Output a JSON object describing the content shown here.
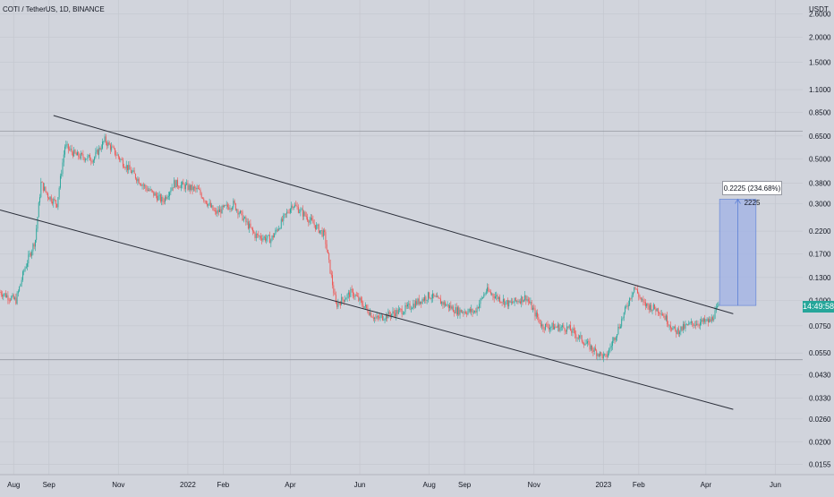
{
  "header": {
    "symbol_label": "COTI / TetherUS, 1D, BINANCE"
  },
  "price_badge": "14:49:58",
  "measure_label": "0.2225 (234.68%) 2225",
  "colors": {
    "up": "#26a69a",
    "down": "#ef5350",
    "grid": "#c4c7cf",
    "channel": "#2a2e39",
    "measure_fill": "#9fb2e6",
    "measure_line": "#5b7fd6"
  },
  "chart_data": {
    "type": "candlestick",
    "scale": "log",
    "title": "COTI / TetherUS, 1D, BINANCE",
    "y_unit": "USDT",
    "ylim": [
      0.0138,
      3.05
    ],
    "y_ticks": [
      "2.6000",
      "2.0000",
      "1.5000",
      "1.1000",
      "0.8500",
      "0.6500",
      "0.5000",
      "0.3800",
      "0.3000",
      "0.2200",
      "0.1700",
      "0.1300",
      "0.1000",
      "0.0750",
      "0.0550",
      "0.0430",
      "0.0330",
      "0.0260",
      "0.0200",
      "0.0155"
    ],
    "x_ticks": [
      "Aug",
      "Sep",
      "Nov",
      "2022",
      "Feb",
      "Apr",
      "Jun",
      "Aug",
      "Sep",
      "Nov",
      "2023",
      "Feb",
      "Apr",
      "Jun"
    ],
    "xlim": [
      "2021-07-20",
      "2023-06-25"
    ],
    "series": [
      {
        "path": [
          [
            "2021-07-20",
            0.11
          ],
          [
            "2021-08-03",
            0.1
          ],
          [
            "2021-08-10",
            0.14
          ],
          [
            "2021-08-20",
            0.2
          ],
          [
            "2021-08-25",
            0.38
          ],
          [
            "2021-08-31",
            0.33
          ],
          [
            "2021-09-08",
            0.3
          ],
          [
            "2021-09-15",
            0.58
          ],
          [
            "2021-09-25",
            0.52
          ],
          [
            "2021-10-10",
            0.5
          ],
          [
            "2021-10-20",
            0.62
          ],
          [
            "2021-11-05",
            0.48
          ],
          [
            "2021-11-25",
            0.36
          ],
          [
            "2021-12-10",
            0.31
          ],
          [
            "2021-12-20",
            0.38
          ],
          [
            "2022-01-10",
            0.35
          ],
          [
            "2022-01-25",
            0.27
          ],
          [
            "2022-02-10",
            0.3
          ],
          [
            "2022-03-01",
            0.21
          ],
          [
            "2022-03-15",
            0.2
          ],
          [
            "2022-04-03",
            0.3
          ],
          [
            "2022-04-15",
            0.26
          ],
          [
            "2022-05-01",
            0.21
          ],
          [
            "2022-05-11",
            0.095
          ],
          [
            "2022-05-25",
            0.11
          ],
          [
            "2022-06-15",
            0.081
          ],
          [
            "2022-07-10",
            0.09
          ],
          [
            "2022-08-01",
            0.106
          ],
          [
            "2022-08-25",
            0.089
          ],
          [
            "2022-09-10",
            0.088
          ],
          [
            "2022-09-20",
            0.112
          ],
          [
            "2022-10-10",
            0.096
          ],
          [
            "2022-10-25",
            0.104
          ],
          [
            "2022-11-08",
            0.075
          ],
          [
            "2022-12-01",
            0.073
          ],
          [
            "2022-12-25",
            0.056
          ],
          [
            "2023-01-03",
            0.052
          ],
          [
            "2023-01-15",
            0.075
          ],
          [
            "2023-01-28",
            0.117
          ],
          [
            "2023-02-05",
            0.096
          ],
          [
            "2023-02-20",
            0.089
          ],
          [
            "2023-03-05",
            0.07
          ],
          [
            "2023-03-20",
            0.077
          ],
          [
            "2023-04-05",
            0.079
          ],
          [
            "2023-04-12",
            0.093
          ]
        ]
      }
    ],
    "annotations": {
      "channel_upper": [
        [
          "2021-09-05",
          0.82
        ],
        [
          "2023-04-25",
          0.086
        ]
      ],
      "channel_lower": [
        [
          "2021-07-20",
          0.28
        ],
        [
          "2023-04-25",
          0.029
        ]
      ],
      "measure_range": {
        "from": "2023-04-13",
        "to": "2023-05-15",
        "low": 0.0945,
        "high": 0.3165
      },
      "horizontal_lines": [
        0.686,
        0.051
      ]
    }
  }
}
